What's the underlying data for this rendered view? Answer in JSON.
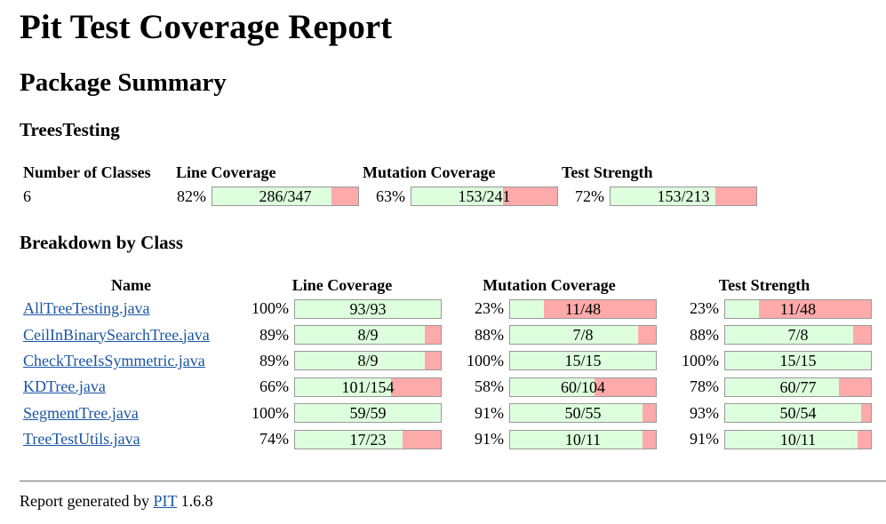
{
  "title": "Pit Test Coverage Report",
  "package_summary_heading": "Package Summary",
  "package_name": "TreesTesting",
  "summary": {
    "headers": {
      "classes": "Number of Classes",
      "line": "Line Coverage",
      "mutation": "Mutation Coverage",
      "strength": "Test Strength"
    },
    "classes": "6",
    "line": {
      "pct": "82%",
      "label": "286/347",
      "fraction": 0.82
    },
    "mutation": {
      "pct": "63%",
      "label": "153/241",
      "fraction": 0.63
    },
    "strength": {
      "pct": "72%",
      "label": "153/213",
      "fraction": 0.72
    }
  },
  "breakdown_heading": "Breakdown by Class",
  "breakdown": {
    "headers": {
      "name": "Name",
      "line": "Line Coverage",
      "mutation": "Mutation Coverage",
      "strength": "Test Strength"
    },
    "rows": [
      {
        "name": "AllTreeTesting.java",
        "line": {
          "pct": "100%",
          "label": "93/93",
          "fraction": 1.0
        },
        "mutation": {
          "pct": "23%",
          "label": "11/48",
          "fraction": 0.23
        },
        "strength": {
          "pct": "23%",
          "label": "11/48",
          "fraction": 0.23
        }
      },
      {
        "name": "CeilInBinarySearchTree.java",
        "line": {
          "pct": "89%",
          "label": "8/9",
          "fraction": 0.89
        },
        "mutation": {
          "pct": "88%",
          "label": "7/8",
          "fraction": 0.88
        },
        "strength": {
          "pct": "88%",
          "label": "7/8",
          "fraction": 0.88
        }
      },
      {
        "name": "CheckTreeIsSymmetric.java",
        "line": {
          "pct": "89%",
          "label": "8/9",
          "fraction": 0.89
        },
        "mutation": {
          "pct": "100%",
          "label": "15/15",
          "fraction": 1.0
        },
        "strength": {
          "pct": "100%",
          "label": "15/15",
          "fraction": 1.0
        }
      },
      {
        "name": "KDTree.java",
        "line": {
          "pct": "66%",
          "label": "101/154",
          "fraction": 0.66
        },
        "mutation": {
          "pct": "58%",
          "label": "60/104",
          "fraction": 0.58
        },
        "strength": {
          "pct": "78%",
          "label": "60/77",
          "fraction": 0.78
        }
      },
      {
        "name": "SegmentTree.java",
        "line": {
          "pct": "100%",
          "label": "59/59",
          "fraction": 1.0
        },
        "mutation": {
          "pct": "91%",
          "label": "50/55",
          "fraction": 0.91
        },
        "strength": {
          "pct": "93%",
          "label": "50/54",
          "fraction": 0.93
        }
      },
      {
        "name": "TreeTestUtils.java",
        "line": {
          "pct": "74%",
          "label": "17/23",
          "fraction": 0.74
        },
        "mutation": {
          "pct": "91%",
          "label": "10/11",
          "fraction": 0.91
        },
        "strength": {
          "pct": "91%",
          "label": "10/11",
          "fraction": 0.91
        }
      }
    ]
  },
  "footer": {
    "prefix": "Report generated by",
    "link": "PIT",
    "version": "1.6.8"
  },
  "colors": {
    "covered": "#ddffdd",
    "uncovered": "#ffaaaa",
    "link": "#1a55a3"
  }
}
